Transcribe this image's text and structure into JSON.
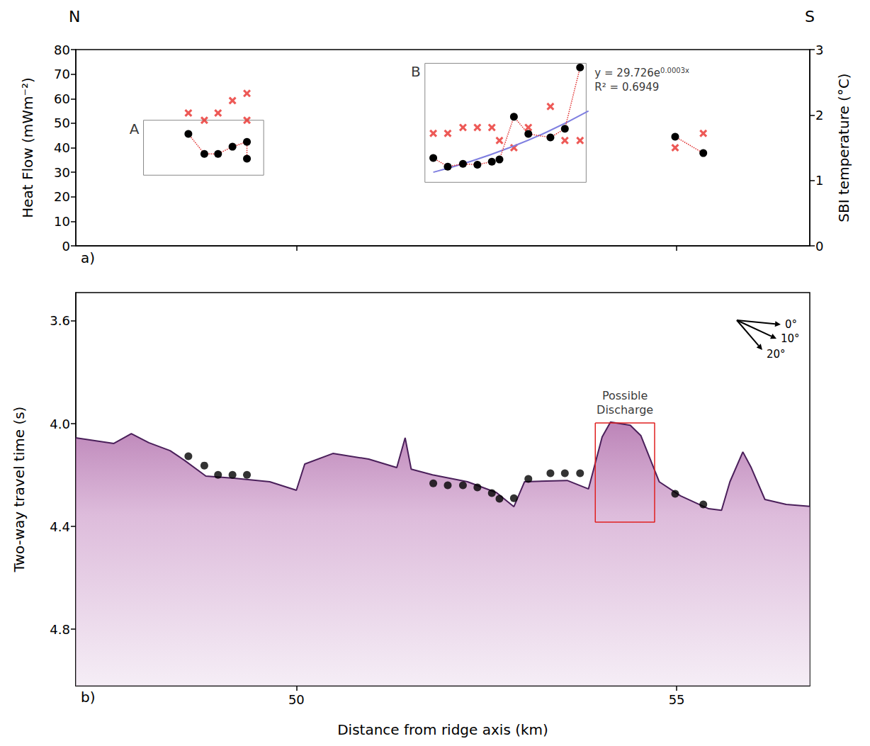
{
  "chart_data": [
    {
      "type": "scatter",
      "panel": "a)",
      "compass": [
        "N",
        "S"
      ],
      "ylabel": "Heat Flow (mWm⁻²)",
      "y2label": "SBI temperature (°C)",
      "xlim": [
        47.1,
        56.75
      ],
      "xticks": [
        50,
        55
      ],
      "ylim": [
        0,
        80
      ],
      "yticks": [
        0,
        10,
        20,
        30,
        40,
        50,
        60,
        70,
        80
      ],
      "y2lim": [
        0,
        3
      ],
      "y2ticks": [
        0,
        1,
        2,
        3
      ],
      "tick_labels": "y",
      "grid": false,
      "series": [
        {
          "type": "line",
          "color": "#000000",
          "marker": "circle",
          "line_style": "dotted",
          "x": [
            48.58,
            48.79,
            48.97,
            49.16,
            49.35,
            49.35
          ],
          "values": [
            45.6,
            37.5,
            37.5,
            40.4,
            42.4,
            35.5
          ]
        },
        {
          "type": "line",
          "color": "#000000",
          "marker": "circle",
          "line_style": "dotted",
          "x": [
            51.8,
            51.99,
            52.19,
            52.38,
            52.57,
            52.67,
            52.86,
            53.05,
            53.34,
            53.53,
            53.73
          ],
          "values": [
            35.8,
            32.3,
            33.4,
            33.1,
            34.3,
            35.2,
            52.6,
            45.6,
            44.2,
            47.7,
            72.7
          ]
        },
        {
          "type": "line",
          "color": "#000000",
          "marker": "circle",
          "line_style": "dotted",
          "x": [
            54.98,
            55.35
          ],
          "values": [
            44.5,
            37.8
          ]
        },
        {
          "type": "scatter",
          "axis": "y2",
          "color": "#e8302c",
          "marker": "x",
          "x": [
            48.58,
            48.79,
            48.97,
            49.16,
            49.35,
            49.35,
            51.8,
            51.99,
            52.19,
            52.38,
            52.57,
            52.67,
            52.86,
            53.05,
            53.34,
            53.53,
            53.73,
            54.98,
            55.35
          ],
          "values": [
            2.03,
            1.92,
            2.03,
            2.22,
            2.33,
            1.92,
            1.72,
            1.72,
            1.81,
            1.81,
            1.81,
            1.61,
            1.5,
            1.81,
            2.13,
            1.61,
            1.61,
            1.5,
            1.72
          ]
        },
        {
          "type": "line",
          "color": "#7f7fe0",
          "marker": "none",
          "line_style": "solid",
          "x": [
            51.8,
            52.3,
            52.8,
            53.3,
            53.84
          ],
          "values": [
            30,
            34.5,
            40,
            46.5,
            55
          ]
        }
      ],
      "boxes": [
        {
          "label": "A",
          "x": [
            47.99,
            49.57
          ],
          "y": [
            28.8,
            51.2
          ]
        },
        {
          "label": "B",
          "x": [
            51.69,
            53.81
          ],
          "y": [
            25.9,
            74.4
          ]
        }
      ],
      "equation": {
        "text": "y = 29.726e",
        "exponent": "0.0003x",
        "r2": "R² = 0.6949"
      }
    },
    {
      "type": "line",
      "panel": "b)",
      "xlabel": "Distance from ridge axis (km)",
      "ylabel": "Two-way travel time (s)",
      "xlim": [
        47.1,
        56.75
      ],
      "xticks": [
        50,
        55
      ],
      "ylim": [
        3.49,
        5.02
      ],
      "yticks": [
        3.6,
        {
          "value": 4,
          "label": "4.0"
        },
        4.4,
        4.8
      ],
      "grid": false,
      "series": [
        {
          "type": "area",
          "color": "#a0509a",
          "marker": "none",
          "line_style": "solid",
          "x": [
            47.1,
            47.6,
            47.83,
            48.06,
            48.34,
            48.53,
            48.81,
            49.18,
            49.65,
            50.0,
            50.11,
            50.48,
            50.95,
            51.32,
            51.43,
            51.51,
            51.79,
            52.25,
            52.63,
            52.86,
            53.0,
            53.56,
            53.84,
            54.02,
            54.13,
            54.39,
            54.53,
            54.77,
            55.05,
            55.42,
            55.59,
            55.7,
            55.87,
            55.98,
            56.16,
            56.44,
            56.75
          ],
          "values": [
            4.055,
            4.077,
            4.039,
            4.074,
            4.105,
            4.143,
            4.204,
            4.212,
            4.226,
            4.259,
            4.157,
            4.116,
            4.138,
            4.171,
            4.055,
            4.177,
            4.199,
            4.226,
            4.268,
            4.323,
            4.226,
            4.221,
            4.254,
            4.052,
            3.994,
            4.006,
            4.047,
            4.226,
            4.281,
            4.331,
            4.337,
            4.226,
            4.11,
            4.171,
            4.295,
            4.314,
            4.322
          ]
        },
        {
          "type": "scatter",
          "color": "#000000",
          "marker": "circle",
          "x": [
            48.58,
            48.79,
            48.97,
            49.16,
            49.35,
            51.8,
            51.99,
            52.19,
            52.38,
            52.57,
            52.67,
            52.86,
            53.05,
            53.34,
            53.53,
            53.73,
            54.98,
            55.35
          ],
          "values": [
            4.127,
            4.163,
            4.199,
            4.199,
            4.199,
            4.232,
            4.24,
            4.24,
            4.248,
            4.27,
            4.292,
            4.29,
            4.215,
            4.193,
            4.193,
            4.193,
            4.273,
            4.314
          ]
        }
      ],
      "annotation": {
        "text": "Possible Discharge",
        "x": [
          53.93,
          54.71
        ],
        "y": [
          3.997,
          4.383
        ],
        "color": "#e02020"
      },
      "dip_scale": [
        "0°",
        "10°",
        "20°"
      ]
    }
  ]
}
